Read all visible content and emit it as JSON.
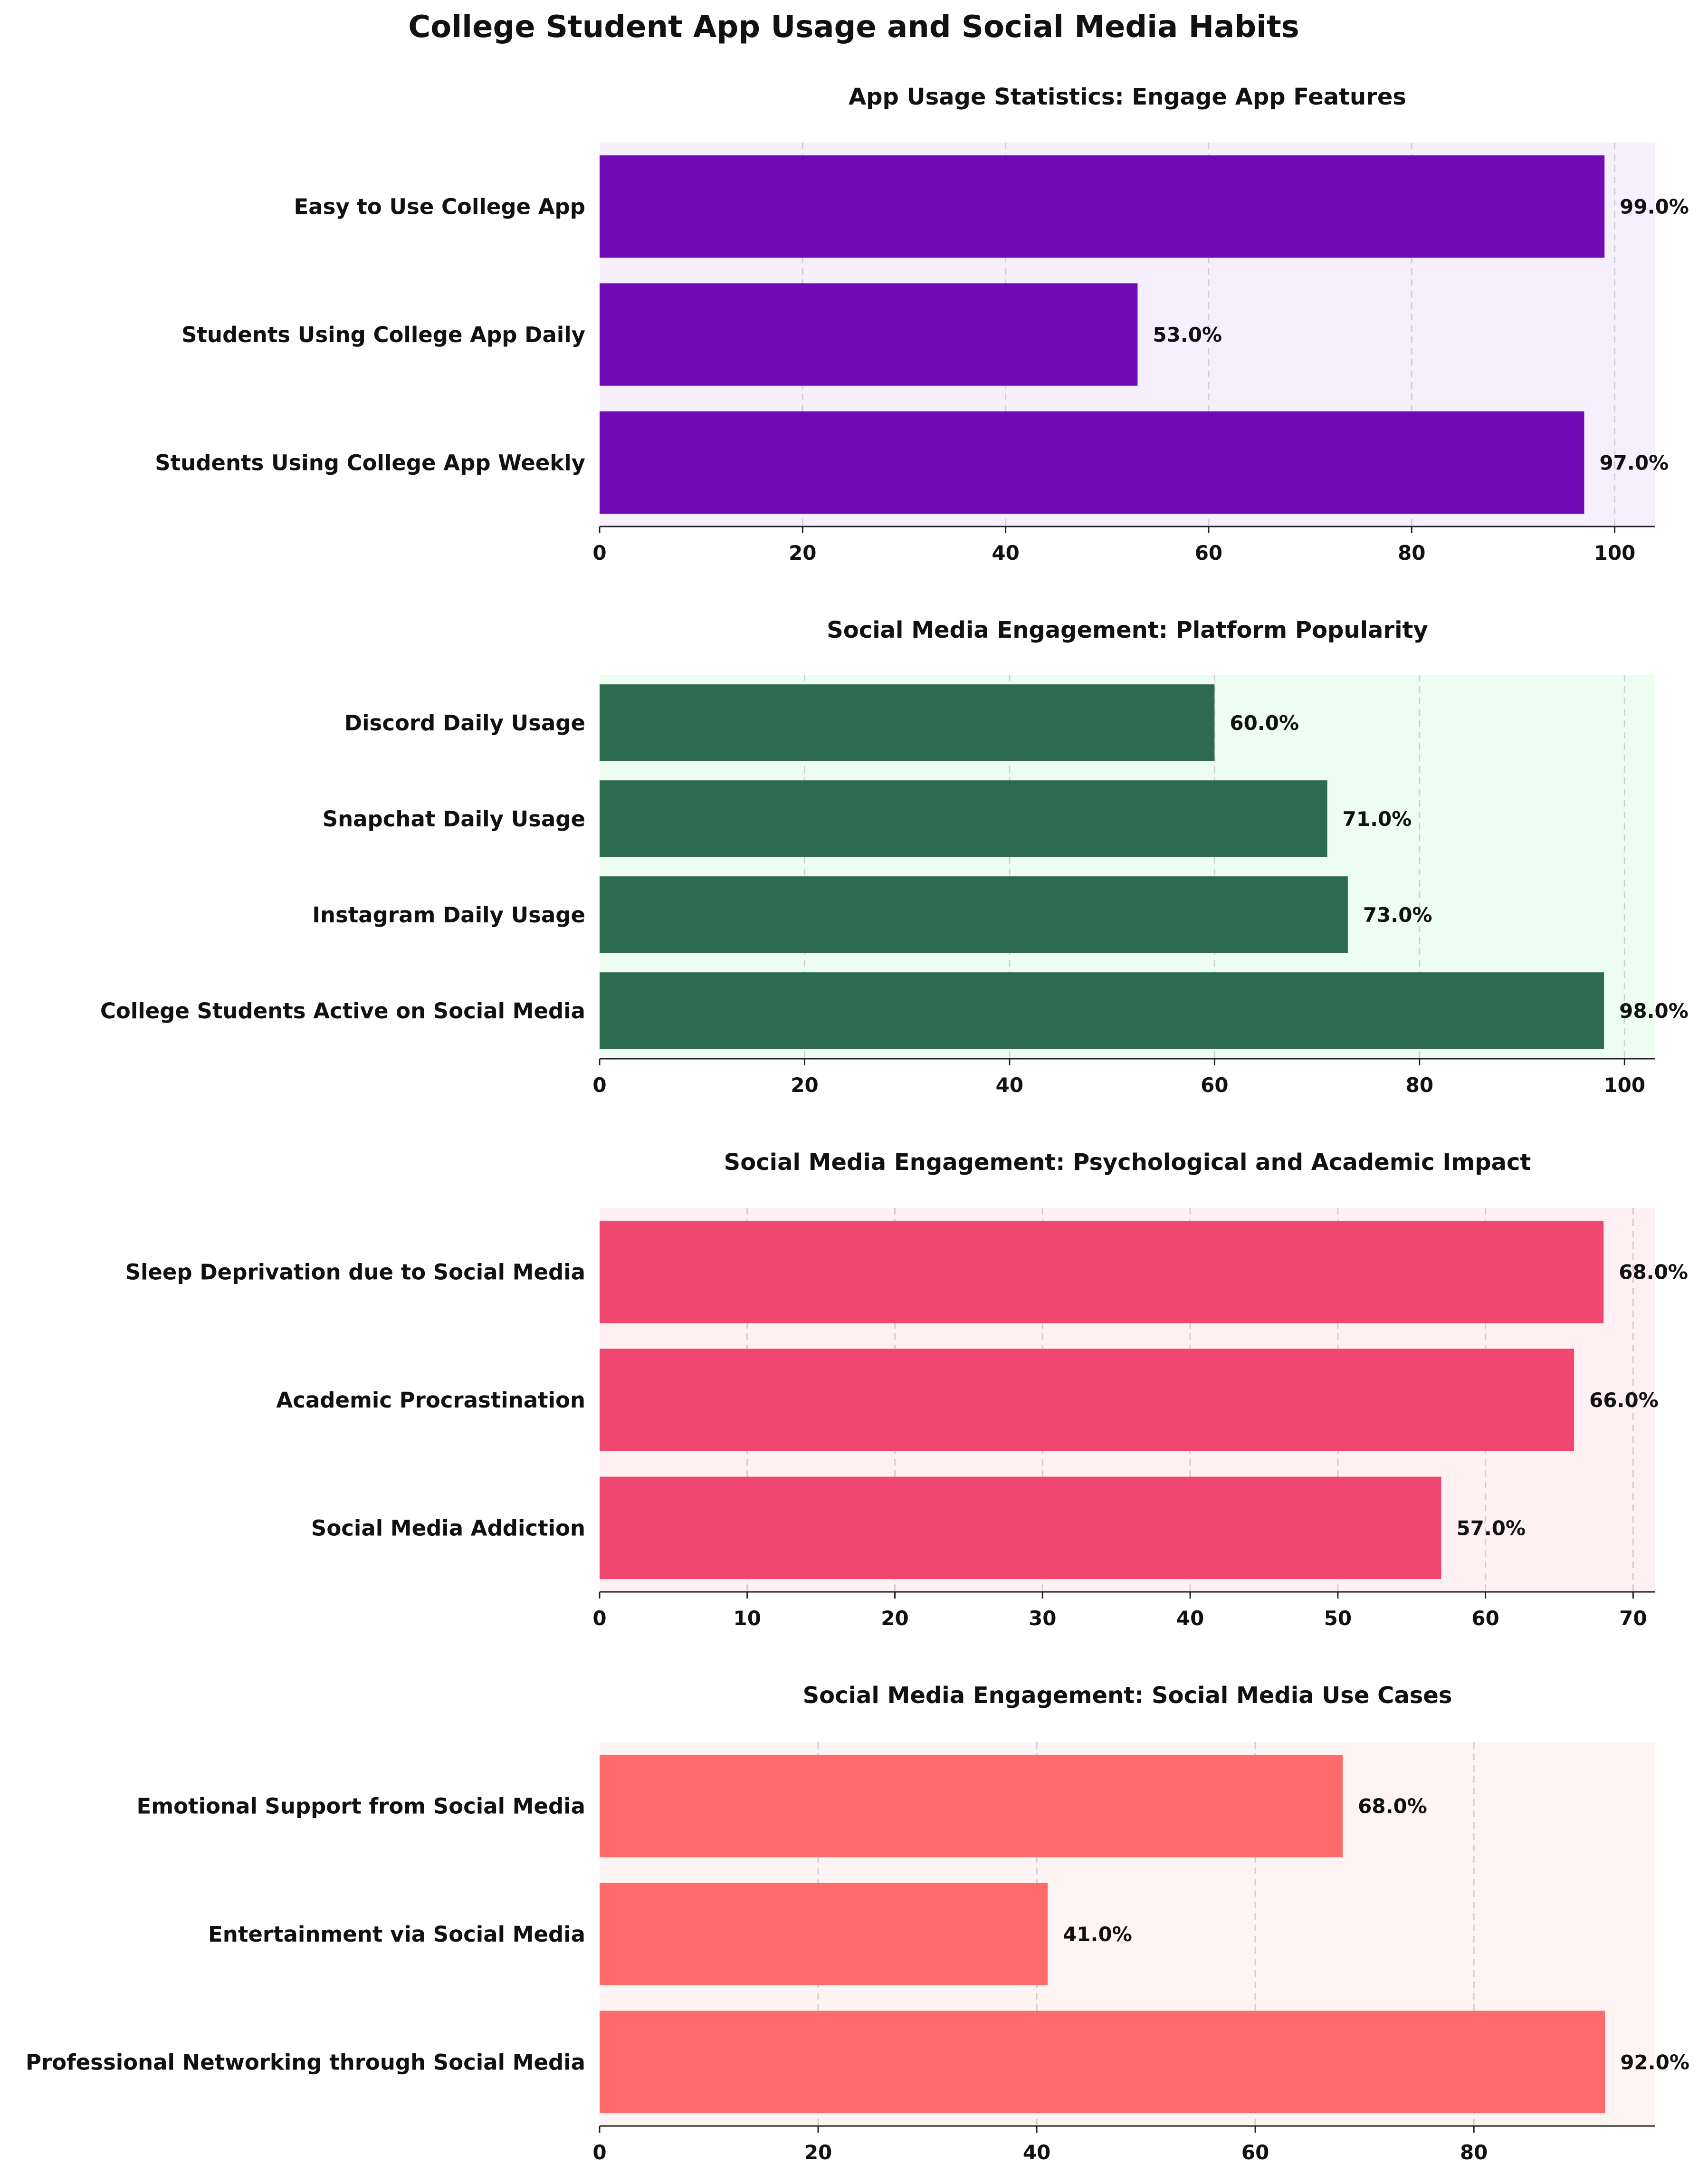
{
  "title": "College Student App Usage and Social Media Habits",
  "chart_data": [
    {
      "type": "bar",
      "orientation": "horizontal",
      "title": "App Usage Statistics: Engage App Features",
      "categories": [
        "Easy to Use College App",
        "Students Using College App Daily",
        "Students Using College App Weekly"
      ],
      "values": [
        99.0,
        53.0,
        97.0
      ],
      "value_labels": [
        "99.0%",
        "53.0%",
        "97.0%"
      ],
      "xlim": [
        0,
        104
      ],
      "xticks": [
        0,
        20,
        40,
        60,
        80,
        100
      ],
      "bar_color": "#7209b7",
      "background": "#f6effd",
      "grid": true
    },
    {
      "type": "bar",
      "orientation": "horizontal",
      "title": "Social Media Engagement: Platform Popularity",
      "categories": [
        "Discord Daily Usage",
        "Snapchat Daily Usage",
        "Instagram Daily Usage",
        "College Students Active on Social Media"
      ],
      "values": [
        60.0,
        71.0,
        73.0,
        98.0
      ],
      "value_labels": [
        "60.0%",
        "71.0%",
        "73.0%",
        "98.0%"
      ],
      "xlim": [
        0,
        103
      ],
      "xticks": [
        0,
        20,
        40,
        60,
        80,
        100
      ],
      "bar_color": "#2d6a4f",
      "background": "#edfdf2",
      "grid": true
    },
    {
      "type": "bar",
      "orientation": "horizontal",
      "title": "Social Media Engagement: Psychological and Academic Impact",
      "categories": [
        "Sleep Deprivation due to Social Media",
        "Academic Procrastination",
        "Social Media Addiction"
      ],
      "values": [
        68.0,
        66.0,
        57.0
      ],
      "value_labels": [
        "68.0%",
        "66.0%",
        "57.0%"
      ],
      "xlim": [
        0,
        71.5
      ],
      "xticks": [
        0,
        10,
        20,
        30,
        40,
        50,
        60,
        70
      ],
      "bar_color": "#ef476f",
      "background": "#fff0f3",
      "grid": true
    },
    {
      "type": "bar",
      "orientation": "horizontal",
      "title": "Social Media Engagement: Social Media Use Cases",
      "categories": [
        "Emotional Support from Social Media",
        "Entertainment via Social Media",
        "Professional Networking through Social Media"
      ],
      "values": [
        68.0,
        41.0,
        92.0
      ],
      "value_labels": [
        "68.0%",
        "41.0%",
        "92.0%"
      ],
      "xlim": [
        0,
        96.6
      ],
      "xticks": [
        0,
        20,
        40,
        60,
        80
      ],
      "bar_color": "#ff6b6b",
      "background": "#fff4f4",
      "grid": true
    }
  ]
}
